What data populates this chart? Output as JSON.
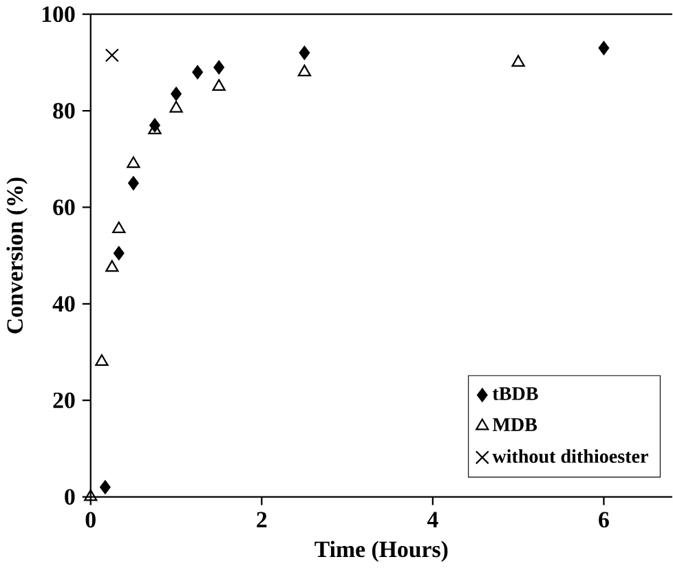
{
  "chart_data": {
    "type": "scatter",
    "xlabel": "Time (Hours)",
    "ylabel": "Conversion (%)",
    "xlim": [
      0,
      6.8
    ],
    "ylim": [
      0,
      100
    ],
    "xticks": [
      0,
      2,
      4,
      6
    ],
    "yticks": [
      0,
      20,
      40,
      60,
      80,
      100
    ],
    "grid": false,
    "legend": "bottom right",
    "series": [
      {
        "name": "tBDB",
        "color": "#000000",
        "marker": "diamond",
        "x": [
          0.17,
          0.33,
          0.5,
          0.75,
          1,
          1.25,
          1.5,
          2.5,
          6
        ],
        "values": [
          2,
          50.5,
          65,
          77,
          83.5,
          88,
          89,
          92,
          93
        ]
      },
      {
        "name": "MDB",
        "color": "#000000",
        "marker": "triangle",
        "x": [
          0,
          0.13,
          0.25,
          0.33,
          0.5,
          0.75,
          1,
          1.5,
          2.5,
          5
        ],
        "values": [
          0,
          28,
          47.5,
          55.5,
          69,
          76,
          80.5,
          85,
          88,
          90
        ]
      },
      {
        "name": "without dithioester",
        "color": "#000000",
        "marker": "cross",
        "x": [
          0.25
        ],
        "values": [
          91.5
        ]
      }
    ]
  }
}
